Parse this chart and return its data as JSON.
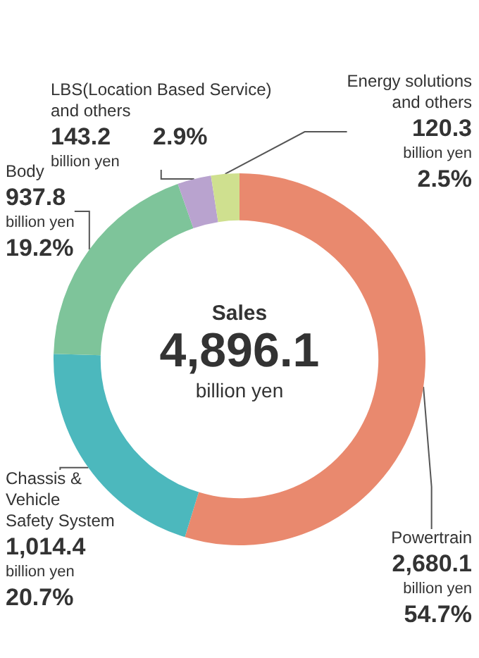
{
  "chart_data": {
    "type": "donut",
    "title": "Sales",
    "annotations": [
      "4,896.1",
      "billion yen"
    ],
    "categories": [
      "Powertrain",
      "Chassis & Vehicle Safety System",
      "Body",
      "LBS(Location Based Service) and others",
      "Energy solutions and others"
    ],
    "values": [
      2680.1,
      1014.4,
      937.8,
      143.2,
      120.3
    ],
    "colors": [
      "#e9896e",
      "#4cb8bd",
      "#7ec49a",
      "#b9a3cf",
      "#cfe08f"
    ],
    "value_labels": [
      "2,680.1\nbillion yen\n54.7%",
      "1,014.4\nbillion yen\n20.7%",
      "937.8\nbillion yen\n19.2%",
      "143.2\n2.9%\nbillion yen",
      "120.3\nbillion yen\n2.5%"
    ]
  }
}
